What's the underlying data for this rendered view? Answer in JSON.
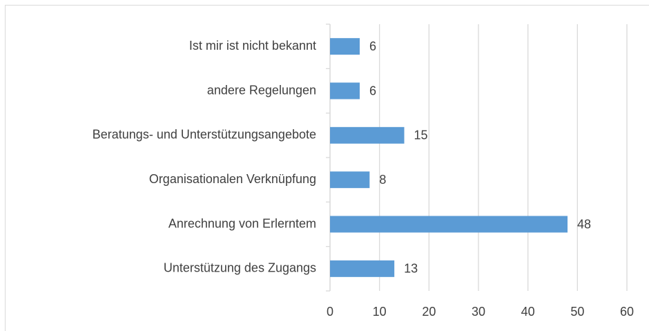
{
  "chart_data": {
    "type": "barh",
    "categories": [
      "Ist mir ist nicht bekannt",
      "andere Regelungen",
      "Beratungs- und Unterstützungsangebote",
      "Organisationalen Verknüpfung",
      "Anrechnung von Erlerntem",
      "Unterstützung des Zugangs"
    ],
    "values": [
      6,
      6,
      15,
      8,
      48,
      13
    ],
    "color": "#5b9bd5",
    "xlim": [
      0,
      60
    ],
    "xticks": [
      0,
      10,
      20,
      30,
      40,
      50,
      60
    ],
    "grid": true
  }
}
